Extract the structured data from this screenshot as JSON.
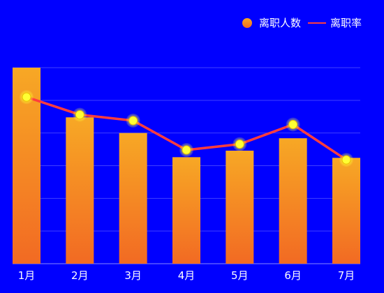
{
  "legend": {
    "bar_label": "离职人数",
    "line_label": "离职率"
  },
  "colors": {
    "background": "#0000ff",
    "bar_top": "#f7a825",
    "bar_bottom": "#f26a23",
    "line": "#ff3d3d",
    "point": "#ffff33",
    "axis_text": "#ffffff"
  },
  "chart_data": {
    "type": "bar",
    "categories": [
      "1月",
      "2月",
      "3月",
      "4月",
      "5月",
      "6月",
      "7月"
    ],
    "series": [
      {
        "name": "离职人数",
        "type": "bar",
        "values": [
          300,
          224,
          200,
          163,
          173,
          192,
          162
        ]
      },
      {
        "name": "离职率",
        "type": "line",
        "values": [
          255,
          228,
          219,
          174,
          183,
          213,
          159
        ]
      }
    ],
    "ylim": [
      0,
      300
    ],
    "grid": true,
    "legend_position": "top-right"
  }
}
